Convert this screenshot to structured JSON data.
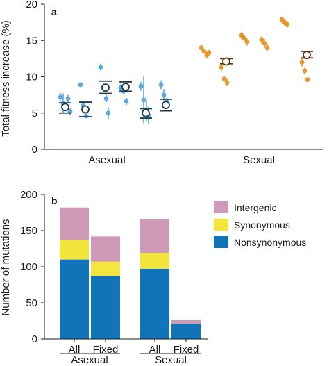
{
  "chart_data": [
    {
      "panel_label": "a",
      "type": "scatter",
      "ylabel": "Total fitness increase (%)",
      "ylim": [
        0,
        20
      ],
      "yticks": [
        0,
        5,
        10,
        15,
        20
      ],
      "groups": [
        "Asexual",
        "Sexual"
      ],
      "colors": {
        "Asexual": "#5aa9dd",
        "Sexual": "#e49a2c",
        "Asexual_mean_edge": "#1f3b4d",
        "Sexual_mean_edge": "#5a3410"
      },
      "populations": [
        {
          "group": "Asexual",
          "replicates": [
            {
              "y": 7.2,
              "err": 0.6
            },
            {
              "y": 6.3,
              "err": 1.4
            },
            {
              "y": 5.8,
              "err": 0.5
            },
            {
              "y": 7.0,
              "err": 0.5
            },
            {
              "y": 5.2,
              "err": 0.5
            }
          ],
          "mean": 5.8,
          "bars": [
            5.0,
            6.4
          ]
        },
        {
          "group": "Asexual",
          "replicates": [
            {
              "y": 8.9,
              "err": 0.3
            },
            {
              "y": 6.0,
              "err": 0.4
            },
            {
              "y": 4.6,
              "err": 0.3
            }
          ],
          "mean": 5.5,
          "bars": [
            4.5,
            6.5
          ]
        },
        {
          "group": "Asexual",
          "replicates": [
            {
              "y": 11.3,
              "err": 0.5
            },
            {
              "y": 8.5,
              "err": 0.6
            },
            {
              "y": 7.0,
              "err": 0.5
            },
            {
              "y": 5.0,
              "err": 0.8
            }
          ],
          "mean": 8.5,
          "bars": [
            7.7,
            9.4
          ]
        },
        {
          "group": "Asexual",
          "replicates": [
            {
              "y": 8.5,
              "err": 0.5
            },
            {
              "y": 8.0,
              "err": 0.4
            },
            {
              "y": 6.6,
              "err": 0.5
            }
          ],
          "mean": 8.6,
          "bars": [
            8.0,
            9.3
          ]
        },
        {
          "group": "Asexual",
          "replicates": [
            {
              "y": 8.7,
              "err": 0.6
            },
            {
              "y": 6.8,
              "err": 3.2
            },
            {
              "y": 5.3,
              "err": 1.4
            },
            {
              "y": 4.7,
              "err": 1.2
            }
          ],
          "mean": 5.0,
          "bars": [
            4.3,
            5.6
          ]
        },
        {
          "group": "Asexual",
          "replicates": [
            {
              "y": 8.9,
              "err": 0.6
            },
            {
              "y": 7.5,
              "err": 0.8
            },
            {
              "y": 6.6,
              "err": 0.5
            }
          ],
          "mean": 6.1,
          "bars": [
            5.3,
            6.9
          ]
        },
        {
          "group": "Sexual",
          "replicates": [
            {
              "y": 14.0,
              "err": 0.4
            },
            {
              "y": 13.5,
              "err": 0.3
            },
            {
              "y": 13.0,
              "err": 0.5
            },
            {
              "y": 13.3,
              "err": 0.4
            }
          ],
          "mean": null,
          "bars": null
        },
        {
          "group": "Sexual",
          "replicates": [
            {
              "y": 11.3,
              "err": 0.5
            },
            {
              "y": 9.7,
              "err": 0.3
            },
            {
              "y": 9.2,
              "err": 0.5
            }
          ],
          "mean": 12.1,
          "bars": [
            11.8,
            12.5
          ]
        },
        {
          "group": "Sexual",
          "replicates": [
            {
              "y": 15.7,
              "err": 0.5
            },
            {
              "y": 15.3,
              "err": 0.4
            },
            {
              "y": 14.8,
              "err": 0.5
            }
          ],
          "mean": null,
          "bars": null
        },
        {
          "group": "Sexual",
          "replicates": [
            {
              "y": 15.1,
              "err": 0.5
            },
            {
              "y": 14.6,
              "err": 0.6
            },
            {
              "y": 14.0,
              "err": 0.5
            }
          ],
          "mean": null,
          "bars": null
        },
        {
          "group": "Sexual",
          "replicates": [
            {
              "y": 17.9,
              "err": 0.4
            },
            {
              "y": 17.5,
              "err": 0.5
            },
            {
              "y": 17.2,
              "err": 0.4
            }
          ],
          "mean": null,
          "bars": null
        },
        {
          "group": "Sexual",
          "replicates": [
            {
              "y": 12.0,
              "err": 0.6
            },
            {
              "y": 10.8,
              "err": 0.5
            },
            {
              "y": 9.6,
              "err": 0.3
            }
          ],
          "mean": 13.0,
          "bars": [
            12.6,
            13.5
          ]
        }
      ]
    },
    {
      "panel_label": "b",
      "type": "bar",
      "stacked": true,
      "ylabel": "Number of mutations",
      "ylim": [
        0,
        200
      ],
      "yticks": [
        0,
        50,
        100,
        150,
        200
      ],
      "categories": [
        "All",
        "Fixed",
        "All",
        "Fixed"
      ],
      "group_labels": [
        "Asexual",
        "Sexual"
      ],
      "series": [
        {
          "name": "Nonsynonymous",
          "color": "#1173b8",
          "values": [
            110,
            87,
            97,
            21
          ]
        },
        {
          "name": "Synonymous",
          "color": "#f3e53c",
          "values": [
            27,
            20,
            22,
            0
          ]
        },
        {
          "name": "Intergenic",
          "color": "#cf9ab8",
          "values": [
            45,
            35,
            47,
            5
          ]
        }
      ],
      "legend_position": "top-right"
    }
  ]
}
